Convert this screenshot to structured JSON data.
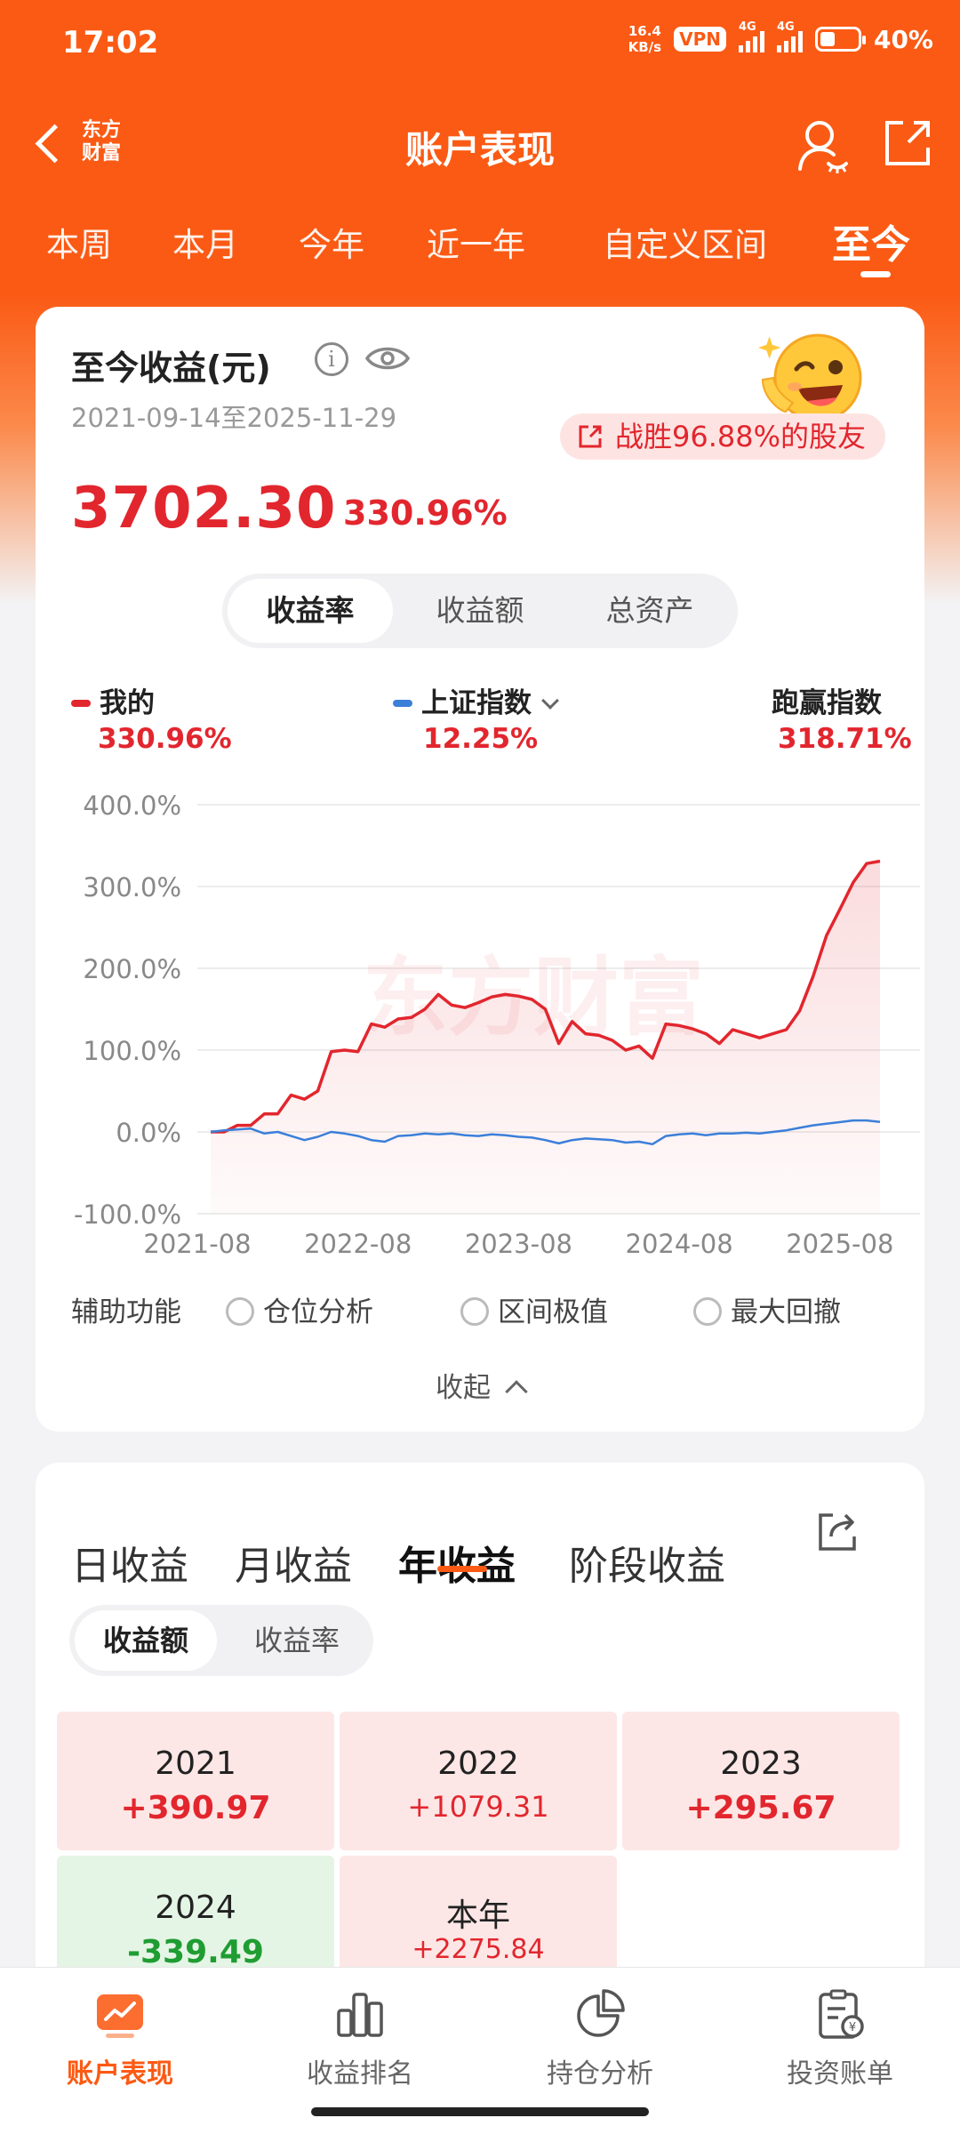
{
  "status_bar": {
    "time": "17:02",
    "net_speed_value": "16.4",
    "net_speed_unit": "KB/s",
    "vpn": "VPN",
    "network1": "4G",
    "network2": "4G",
    "battery": "40%"
  },
  "header": {
    "logo_line1": "东方",
    "logo_line2": "财富",
    "title": "账户表现"
  },
  "period_tabs": [
    {
      "label": "本周"
    },
    {
      "label": "本月"
    },
    {
      "label": "今年"
    },
    {
      "label": "近一年"
    },
    {
      "label": "自定义区间"
    },
    {
      "label": "至今",
      "active": true
    }
  ],
  "summary": {
    "title": "至今收益(元)",
    "date_range": "2021-09-14至2025-11-29",
    "win_text": "战胜96.88%的股友",
    "total_profit": "3702.30",
    "total_rate": "330.96%"
  },
  "chart_toggle": {
    "options": [
      "收益率",
      "收益额",
      "总资产"
    ],
    "active": "收益率"
  },
  "legend": {
    "mine_label": "我的",
    "mine_value": "330.96%",
    "index_label": "上证指数",
    "index_value": "12.25%",
    "beat_label": "跑赢指数",
    "beat_value": "318.71%"
  },
  "colors": {
    "brand": "#fb5a14",
    "positive": "#e2262e",
    "negative": "#1f9d32",
    "mine_line": "#e2262e",
    "index_line": "#3b7fd9"
  },
  "chart_data": {
    "type": "line",
    "watermark": "东方财富",
    "ylim": [
      -100,
      400
    ],
    "yticks": [
      "400.0%",
      "300.0%",
      "200.0%",
      "100.0%",
      "0.0%",
      "-100.0%"
    ],
    "xticks": [
      "2021-08",
      "2022-08",
      "2023-08",
      "2024-08",
      "2025-08"
    ],
    "grid": true,
    "series": [
      {
        "name": "我的",
        "color": "#e2262e",
        "fill": true,
        "x": [
          "2021-09",
          "2021-10",
          "2021-11",
          "2021-12",
          "2022-01",
          "2022-02",
          "2022-03",
          "2022-04",
          "2022-05",
          "2022-06",
          "2022-07",
          "2022-08",
          "2022-09",
          "2022-10",
          "2022-11",
          "2022-12",
          "2023-01",
          "2023-02",
          "2023-03",
          "2023-04",
          "2023-05",
          "2023-06",
          "2023-07",
          "2023-08",
          "2023-09",
          "2023-10",
          "2023-11",
          "2023-12",
          "2024-01",
          "2024-02",
          "2024-03",
          "2024-04",
          "2024-05",
          "2024-06",
          "2024-07",
          "2024-08",
          "2024-09",
          "2024-10",
          "2024-11",
          "2024-12",
          "2025-01",
          "2025-02",
          "2025-03",
          "2025-04",
          "2025-05",
          "2025-06",
          "2025-07",
          "2025-08",
          "2025-09",
          "2025-10",
          "2025-11"
        ],
        "values": [
          0,
          0,
          8,
          8,
          22,
          22,
          45,
          40,
          50,
          98,
          100,
          98,
          132,
          128,
          138,
          140,
          150,
          168,
          155,
          152,
          158,
          165,
          168,
          166,
          162,
          150,
          108,
          135,
          120,
          118,
          112,
          100,
          105,
          90,
          132,
          130,
          126,
          120,
          108,
          125,
          120,
          115,
          120,
          125,
          148,
          190,
          240,
          272,
          305,
          328,
          331
        ]
      },
      {
        "name": "上证指数",
        "color": "#3b7fd9",
        "fill": false,
        "x": [
          "2021-09",
          "2021-10",
          "2021-11",
          "2021-12",
          "2022-01",
          "2022-02",
          "2022-03",
          "2022-04",
          "2022-05",
          "2022-06",
          "2022-07",
          "2022-08",
          "2022-09",
          "2022-10",
          "2022-11",
          "2022-12",
          "2023-01",
          "2023-02",
          "2023-03",
          "2023-04",
          "2023-05",
          "2023-06",
          "2023-07",
          "2023-08",
          "2023-09",
          "2023-10",
          "2023-11",
          "2023-12",
          "2024-01",
          "2024-02",
          "2024-03",
          "2024-04",
          "2024-05",
          "2024-06",
          "2024-07",
          "2024-08",
          "2024-09",
          "2024-10",
          "2024-11",
          "2024-12",
          "2025-01",
          "2025-02",
          "2025-03",
          "2025-04",
          "2025-05",
          "2025-06",
          "2025-07",
          "2025-08",
          "2025-09",
          "2025-10",
          "2025-11"
        ],
        "values": [
          0,
          2,
          3,
          4,
          -2,
          0,
          -5,
          -10,
          -6,
          0,
          -2,
          -5,
          -10,
          -12,
          -5,
          -4,
          -2,
          -3,
          -2,
          -4,
          -5,
          -3,
          -4,
          -6,
          -7,
          -10,
          -14,
          -10,
          -8,
          -9,
          -10,
          -13,
          -12,
          -15,
          -5,
          -3,
          -2,
          -4,
          -2,
          -2,
          -1,
          -2,
          0,
          2,
          5,
          8,
          10,
          12,
          14,
          14,
          12.25
        ]
      }
    ]
  },
  "aux": {
    "label": "辅助功能",
    "options": [
      "仓位分析",
      "区间极值",
      "最大回撤"
    ],
    "collapse": "收起"
  },
  "profit_tabs": {
    "tabs": [
      "日收益",
      "月收益",
      "年收益",
      "阶段收益"
    ],
    "active": "年收益",
    "sub_options": [
      "收益额",
      "收益率"
    ],
    "sub_active": "收益额"
  },
  "yearly": [
    {
      "year": "2021",
      "amount": "+390.97",
      "sign": "positive"
    },
    {
      "year": "2022",
      "amount": "+1079.31",
      "sign": "positive"
    },
    {
      "year": "2023",
      "amount": "+295.67",
      "sign": "positive"
    },
    {
      "year": "2024",
      "amount": "-339.49",
      "sign": "negative"
    },
    {
      "year": "本年",
      "amount": "+2275.84",
      "sign": "positive"
    }
  ],
  "bottom_nav": [
    {
      "label": "账户表现",
      "icon": "performance-icon",
      "active": true
    },
    {
      "label": "收益排名",
      "icon": "ranking-icon"
    },
    {
      "label": "持仓分析",
      "icon": "pie-chart-icon"
    },
    {
      "label": "投资账单",
      "icon": "bill-icon"
    }
  ]
}
